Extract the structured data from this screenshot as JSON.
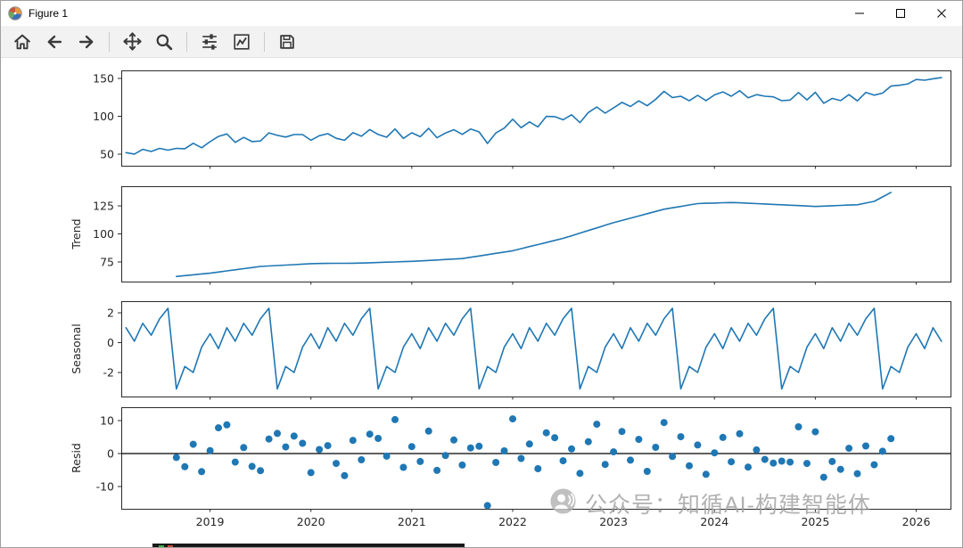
{
  "window": {
    "title": "Figure 1",
    "controls": [
      {
        "name": "minimize"
      },
      {
        "name": "maximize"
      },
      {
        "name": "close"
      }
    ]
  },
  "toolbar": {
    "icons": [
      "home",
      "back",
      "forward",
      "pan",
      "zoom",
      "subplots",
      "customize",
      "save"
    ]
  },
  "watermark": {
    "text": "公众号：知循AI-构建智能体"
  },
  "chart_data": {
    "type": "line",
    "title": "",
    "grid": false,
    "legend": "none",
    "line_color": "#1f77b4",
    "x_start": {
      "year": 2018,
      "month": 3
    },
    "freq": "monthly",
    "xlim": [
      2018.12,
      2026.34
    ],
    "x_ticks": [
      {
        "value": 2019,
        "label": "2019"
      },
      {
        "value": 2020,
        "label": "2020"
      },
      {
        "value": 2021,
        "label": "2021"
      },
      {
        "value": 2022,
        "label": "2022"
      },
      {
        "value": 2023,
        "label": "2023"
      },
      {
        "value": 2024,
        "label": "2024"
      },
      {
        "value": 2025,
        "label": "2025"
      },
      {
        "value": 2026,
        "label": "2026"
      }
    ],
    "panels": [
      {
        "name": "observed",
        "ylabel": "",
        "type": "line",
        "yticks": [
          50,
          100,
          150
        ],
        "ylim": [
          34.7,
          160.6
        ],
        "start_index": 0,
        "values": [
          52.0,
          50.1,
          56.3,
          53.5,
          57.6,
          55.3,
          57.7,
          57.2,
          64.3,
          58.5,
          66.5,
          73.4,
          76.7,
          65.5,
          72.1,
          66.6,
          67.4,
          78.1,
          74.8,
          72.6,
          75.9,
          75.9,
          68.3,
          74.4,
          77.1,
          70.9,
          68.4,
          78.4,
          73.7,
          82.5,
          76.0,
          72.4,
          83.3,
          70.8,
          78.2,
          73.1,
          84.1,
          71.7,
          77.9,
          82.2,
          76.1,
          83.2,
          79.4,
          64.1,
          78.0,
          84.3,
          96.1,
          84.9,
          92.6,
          86.0,
          99.9,
          99.5,
          95.4,
          102.0,
          91.6,
          105.0,
          112.2,
          104.1,
          111.1,
          118.3,
          113.0,
          120.4,
          113.9,
          122.4,
          133.0,
          124.7,
          126.5,
          120.5,
          127.6,
          120.7,
          128.3,
          132.3,
          126.5,
          133.8,
          124.5,
          128.6,
          126.5,
          125.7,
          120.6,
          121.4,
          131.4,
          121.6,
          131.7,
          117.2,
          123.7,
          120.7,
          128.6,
          120.4,
          131.4,
          127.9,
          130.6,
          139.9,
          141.0,
          142.7,
          148.6,
          147.6,
          149.5,
          151.1
        ]
      },
      {
        "name": "trend",
        "ylabel": "Trend",
        "type": "line",
        "yticks": [
          75,
          100,
          125
        ],
        "ylim": [
          57.5,
          142.5
        ],
        "start_index": 6,
        "values": [
          62.0,
          62.8,
          63.5,
          64.3,
          65.0,
          66.0,
          67.0,
          68.0,
          69.0,
          70.0,
          71.0,
          71.4,
          71.8,
          72.2,
          72.6,
          73.1,
          73.5,
          73.6,
          73.7,
          73.8,
          73.8,
          73.9,
          74.0,
          74.3,
          74.5,
          74.8,
          75.0,
          75.3,
          75.5,
          75.9,
          76.3,
          76.7,
          77.2,
          77.6,
          78.0,
          79.2,
          80.3,
          81.5,
          82.7,
          83.8,
          85.0,
          86.8,
          88.7,
          90.5,
          92.3,
          94.2,
          96.0,
          98.3,
          100.7,
          103.0,
          105.3,
          107.7,
          110.0,
          112.0,
          114.0,
          116.0,
          118.0,
          120.0,
          122.0,
          123.3,
          124.5,
          125.8,
          127.0,
          127.3,
          127.5,
          127.8,
          128.0,
          127.7,
          127.3,
          127.0,
          126.7,
          126.3,
          126.0,
          125.6,
          125.3,
          124.9,
          124.5,
          124.8,
          125.1,
          125.4,
          125.7,
          126.0,
          127.5,
          129.0,
          133.0,
          137.0
        ]
      },
      {
        "name": "seasonal",
        "ylabel": "Seasonal",
        "type": "line",
        "yticks": [
          -2,
          0,
          2
        ],
        "ylim": [
          -3.61,
          2.78
        ],
        "start_index": 0,
        "values": [
          1.0,
          0.1,
          1.3,
          0.5,
          1.6,
          2.3,
          -3.1,
          -1.6,
          -2.0,
          -0.3,
          0.6,
          -0.4,
          1.0,
          0.1,
          1.3,
          0.5,
          1.6,
          2.3,
          -3.1,
          -1.6,
          -2.0,
          -0.3,
          0.6,
          -0.4,
          1.0,
          0.1,
          1.3,
          0.5,
          1.6,
          2.3,
          -3.1,
          -1.6,
          -2.0,
          -0.3,
          0.6,
          -0.4,
          1.0,
          0.1,
          1.3,
          0.5,
          1.6,
          2.3,
          -3.1,
          -1.6,
          -2.0,
          -0.3,
          0.6,
          -0.4,
          1.0,
          0.1,
          1.3,
          0.5,
          1.6,
          2.3,
          -3.1,
          -1.6,
          -2.0,
          -0.3,
          0.6,
          -0.4,
          1.0,
          0.1,
          1.3,
          0.5,
          1.6,
          2.3,
          -3.1,
          -1.6,
          -2.0,
          -0.3,
          0.6,
          -0.4,
          1.0,
          0.1,
          1.3,
          0.5,
          1.6,
          2.3,
          -3.1,
          -1.6,
          -2.0,
          -0.3,
          0.6,
          -0.4,
          1.0,
          0.1,
          1.3,
          0.5,
          1.6,
          2.3,
          -3.1,
          -1.6,
          -2.0,
          -0.3,
          0.6,
          -0.4,
          1.0,
          0.1
        ]
      },
      {
        "name": "resid",
        "ylabel": "Resid",
        "type": "scatter",
        "yticks": [
          -10,
          0,
          10
        ],
        "ylim": [
          -16.76,
          14.05
        ],
        "start_index": 6,
        "zero_line": true,
        "values": [
          -1.2,
          -4.0,
          2.8,
          -5.5,
          0.9,
          7.8,
          8.7,
          -2.6,
          1.8,
          -3.9,
          -5.2,
          4.4,
          6.1,
          2.0,
          5.3,
          3.1,
          -5.8,
          1.2,
          2.4,
          -3.0,
          -6.7,
          4.0,
          -1.9,
          5.9,
          4.6,
          -0.8,
          10.3,
          -4.2,
          2.1,
          -2.4,
          6.8,
          -5.1,
          -0.6,
          4.1,
          -3.5,
          1.7,
          2.2,
          -15.8,
          -2.7,
          0.8,
          10.5,
          -1.5,
          2.9,
          -4.6,
          6.3,
          4.8,
          -2.2,
          1.4,
          -6.0,
          3.6,
          8.9,
          -3.3,
          0.5,
          6.7,
          -2.0,
          4.3,
          -5.4,
          1.9,
          9.4,
          -0.9,
          5.1,
          -3.7,
          2.6,
          -6.3,
          0.2,
          4.9,
          -2.5,
          6.0,
          -4.1,
          1.1,
          -1.8,
          -2.9,
          -2.3,
          -2.6,
          8.1,
          -3.0,
          6.6,
          -7.2,
          -2.4,
          -4.8,
          1.6,
          -6.1,
          2.3,
          -3.4,
          0.7,
          4.5
        ]
      }
    ]
  }
}
